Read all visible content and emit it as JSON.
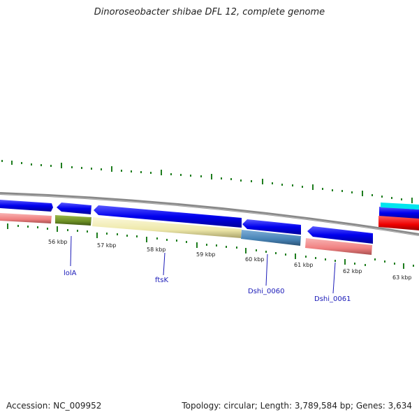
{
  "title": "Dinoroseobacter shibae DFL 12, complete genome",
  "footer": {
    "accession": "Accession: NC_009952",
    "stats": "Topology: circular; Length: 3,789,584 bp; Genes: 3,634"
  },
  "kbp_labels": [
    "56 kbp",
    "57 kbp",
    "58 kbp",
    "59 kbp",
    "60 kbp",
    "61 kbp",
    "62 kbp",
    "63 kbp"
  ],
  "gene_labels": [
    "lolA",
    "ftsK",
    "Dshi_0060",
    "Dshi_0061"
  ],
  "colors": {
    "forward_cds": "#0000ee",
    "reverse_cds_pink": "#f08080",
    "olive": "#6b8e23",
    "khaki": "#eee8aa",
    "steel": "#4682b4",
    "red": "#ee0000",
    "cyan": "#00e5ee",
    "backbone": "#888888",
    "tick": "#1e7d1e",
    "label": "#1a1ab8"
  }
}
